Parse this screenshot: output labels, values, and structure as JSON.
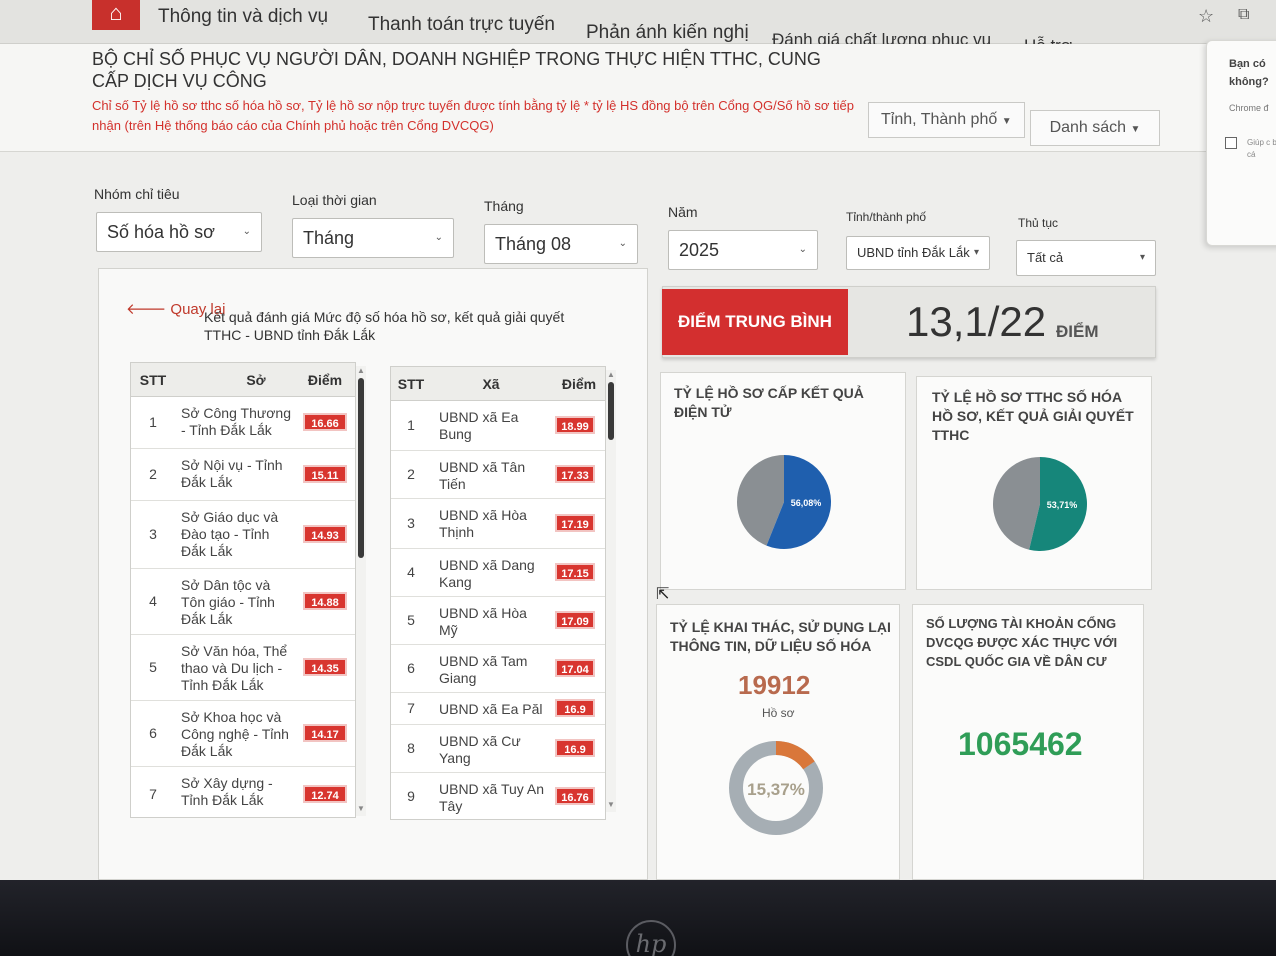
{
  "nav": {
    "items": [
      "Thông tin và dịch vụ",
      "Thanh toán trực tuyến",
      "Phản ánh kiến nghị",
      "Đánh giá chất lượng phục vụ",
      "Hỗ trợ"
    ]
  },
  "header": {
    "title": "BỘ CHỈ SỐ PHỤC VỤ NGƯỜI DÂN, DOANH NGHIỆP TRONG THỰC HIỆN TTHC, CUNG CẤP DỊCH VỤ CÔNG",
    "note": "Chỉ số Tỷ lệ hồ sơ tthc số hóa hồ sơ, Tỷ lệ hồ sơ nộp trực tuyến được tính bằng tỷ lệ * tỷ lệ HS đồng bộ trên Cổng QG/Số hồ sơ tiếp nhận (trên Hệ thống báo cáo của Chính phủ hoặc trên Cổng DVCQG)",
    "province_button": "Tỉnh, Thành phố",
    "list_button": "Danh sách"
  },
  "popup": {
    "question": "Bạn có không?",
    "chrome": "Chrome đ",
    "help": "Giúp c báo cá"
  },
  "filters": {
    "group_label": "Nhóm chỉ tiêu",
    "group_value": "Số hóa hồ sơ",
    "time_type_label": "Loại thời gian",
    "time_type_value": "Tháng",
    "month_label": "Tháng",
    "month_value": "Tháng 08",
    "year_label": "Năm",
    "year_value": "2025",
    "province_label": "Tỉnh/thành phố",
    "province_value": "UBND tỉnh Đắk Lắk",
    "procedure_label": "Thủ tục",
    "procedure_value": "Tất cả"
  },
  "panel": {
    "back": "Quay lại",
    "title": "Kết quả đánh giá Mức độ số hóa hồ sơ, kết quả giải quyết TTHC - UBND tỉnh Đắk Lắk"
  },
  "dept_table": {
    "headers": [
      "STT",
      "Sở",
      "Điểm"
    ],
    "rows": [
      {
        "stt": "1",
        "name": "Sở Công Thương - Tỉnh Đắk Lắk",
        "score": "16.66"
      },
      {
        "stt": "2",
        "name": "Sở Nội vụ - Tỉnh Đắk Lắk",
        "score": "15.11"
      },
      {
        "stt": "3",
        "name": "Sở Giáo dục và Đào tạo - Tỉnh Đắk Lắk",
        "score": "14.93"
      },
      {
        "stt": "4",
        "name": "Sở Dân tộc và Tôn giáo - Tỉnh Đắk Lắk",
        "score": "14.88"
      },
      {
        "stt": "5",
        "name": "Sở Văn hóa, Thể thao và Du lịch - Tỉnh Đắk Lắk",
        "score": "14.35"
      },
      {
        "stt": "6",
        "name": "Sở Khoa học và Công nghệ - Tỉnh Đắk Lắk",
        "score": "14.17"
      },
      {
        "stt": "7",
        "name": "Sở Xây dựng - Tỉnh Đắk Lắk",
        "score": "12.74"
      }
    ]
  },
  "commune_table": {
    "headers": [
      "STT",
      "Xã",
      "Điểm"
    ],
    "rows": [
      {
        "stt": "1",
        "name": "UBND xã Ea Bung",
        "score": "18.99"
      },
      {
        "stt": "2",
        "name": "UBND xã Tân Tiến",
        "score": "17.33"
      },
      {
        "stt": "3",
        "name": "UBND xã Hòa Thịnh",
        "score": "17.19"
      },
      {
        "stt": "4",
        "name": "UBND xã Dang Kang",
        "score": "17.15"
      },
      {
        "stt": "5",
        "name": "UBND xã Hòa Mỹ",
        "score": "17.09"
      },
      {
        "stt": "6",
        "name": "UBND xã Tam Giang",
        "score": "17.04"
      },
      {
        "stt": "7",
        "name": "UBND xã Ea Păl",
        "score": "16.9"
      },
      {
        "stt": "8",
        "name": "UBND xã Cư Yang",
        "score": "16.9"
      },
      {
        "stt": "9",
        "name": "UBND xã Tuy An Tây",
        "score": "16.76"
      }
    ]
  },
  "score": {
    "label": "ĐIỂM TRUNG BÌNH",
    "value": "13,1/22",
    "unit": "ĐIỂM"
  },
  "cards": {
    "electronic": {
      "title": "TỶ LỆ HỒ SƠ CẤP KẾT QUẢ ĐIỆN TỬ",
      "percent": 56.08,
      "label": "56,08%",
      "color": "#1f5fae"
    },
    "digitized": {
      "title": "TỶ LỆ HỒ SƠ TTHC SỐ HÓA HỒ SƠ, KẾT QUẢ GIẢI QUYẾT TTHC",
      "percent": 53.71,
      "label": "53,71%",
      "color": "#16867a"
    },
    "reuse": {
      "title": "TỶ LỆ KHAI THÁC, SỬ DỤNG LẠI THÔNG TIN, DỮ LIỆU SỐ HÓA",
      "count": "19912",
      "count_unit": "Hồ sơ",
      "percent": 15.37,
      "label": "15,37%",
      "color": "#d9773a"
    },
    "accounts": {
      "title": "SỐ LƯỢNG TÀI KHOẢN CỔNG DVCQG ĐƯỢC XÁC THỰC VỚI CSDL QUỐC GIA VỀ DÂN CƯ",
      "count": "1065462",
      "color": "#2f9d57"
    }
  },
  "colors": {
    "primary": "#d32f2f",
    "pie_rest": "#8a8f93",
    "ring_rest": "#a6aeb4"
  }
}
